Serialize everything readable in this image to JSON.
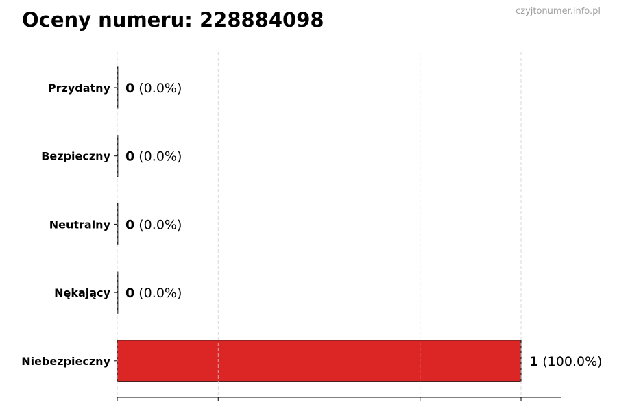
{
  "chart_data": {
    "type": "bar",
    "orientation": "horizontal",
    "title": "Oceny numeru: 228884098",
    "watermark": "czyjtonumer.info.pl",
    "categories": [
      "Przydatny",
      "Bezpieczny",
      "Neutralny",
      "Nękający",
      "Niebezpieczny"
    ],
    "values": [
      0,
      0,
      0,
      0,
      1
    ],
    "percent_labels": [
      "(0.0%)",
      "(0.0%)",
      "(0.0%)",
      "(0.0%)",
      "(100.0%)"
    ],
    "colors": [
      "#2ca02c",
      "#1f77b4",
      "#7f7f7f",
      "#ff7f0e",
      "#dc2626"
    ],
    "xlim": [
      0,
      1.1
    ],
    "x_ticks": [
      0,
      0.25,
      0.5,
      0.75,
      1.0
    ],
    "grid": "x-dashed",
    "xlabel": "",
    "ylabel": ""
  }
}
